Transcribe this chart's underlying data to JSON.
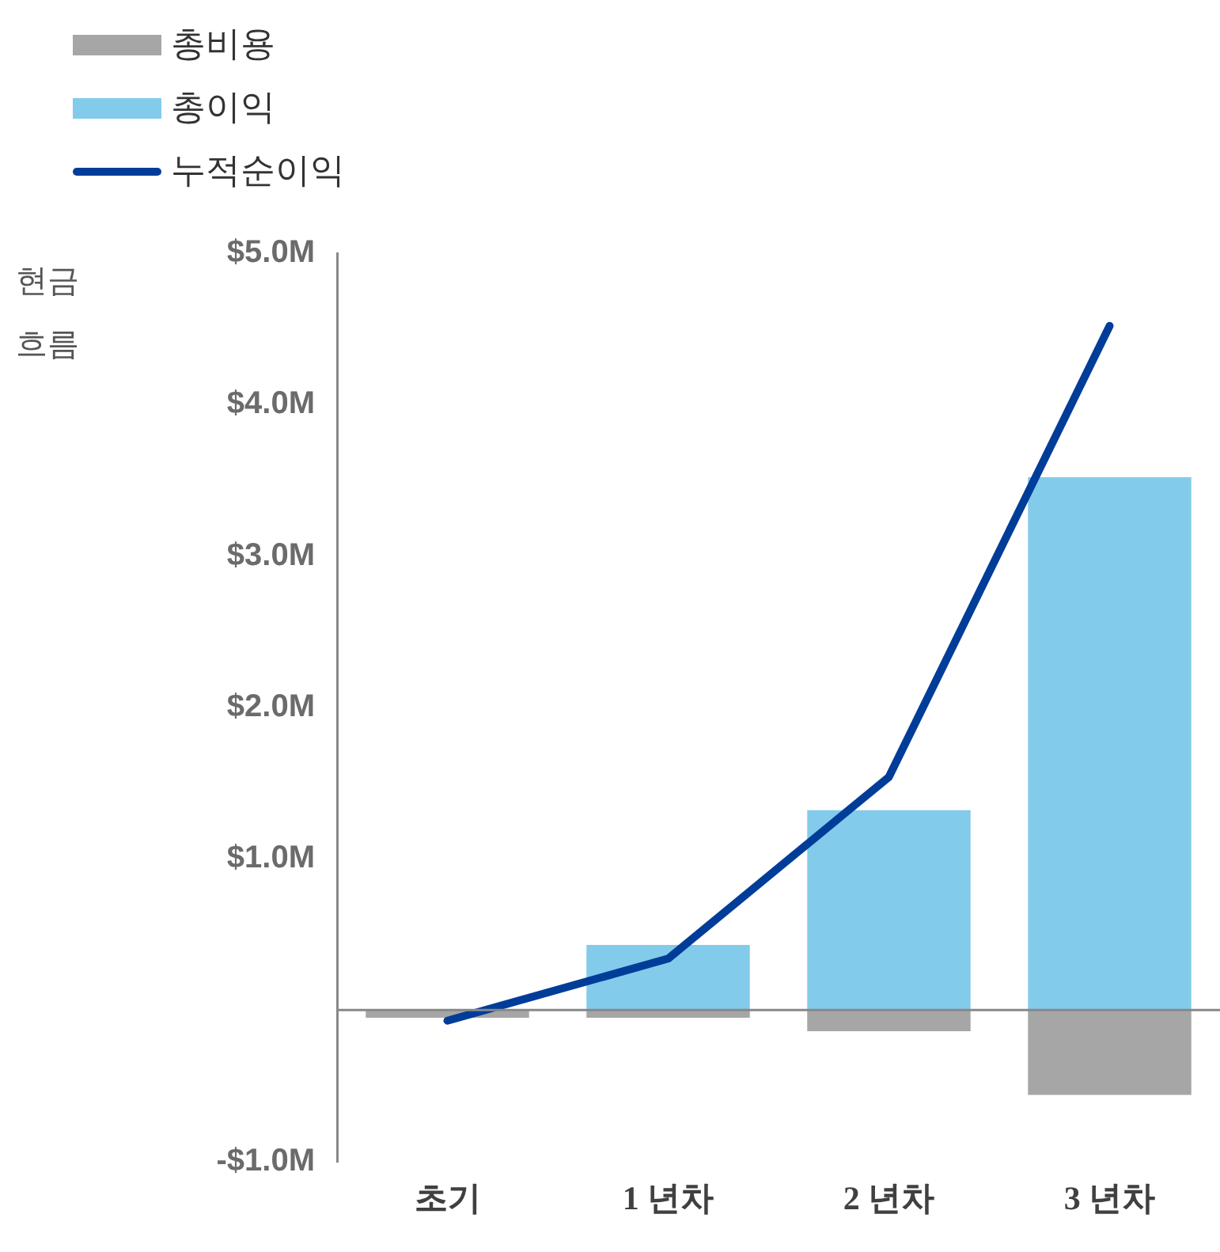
{
  "chart_data": {
    "type": "bar",
    "ylabel": "현금 흐름",
    "categories": [
      "초기",
      "1 년차",
      "2 년차",
      "3 년차"
    ],
    "series": [
      {
        "name": "총비용",
        "color": "#a6a6a6",
        "values": [
          -0.05,
          -0.05,
          -0.14,
          -0.56
        ]
      },
      {
        "name": "총이익",
        "color": "#83cbeb",
        "values": [
          null,
          0.43,
          1.32,
          3.52
        ]
      },
      {
        "name": "누적순이익",
        "type": "line",
        "color": "#003d99",
        "values": [
          -0.07,
          0.34,
          1.54,
          4.52
        ]
      }
    ],
    "stacked": true,
    "ylim": [
      -1,
      5
    ],
    "yticks": [
      {
        "value": -1,
        "label": "-$1.0M"
      },
      {
        "value": 0,
        "label": null
      },
      {
        "value": 1,
        "label": "$1.0M"
      },
      {
        "value": 2,
        "label": "$2.0M"
      },
      {
        "value": 3,
        "label": "$3.0M"
      },
      {
        "value": 4,
        "label": "$4.0M"
      },
      {
        "value": 5,
        "label": "$5.0M"
      }
    ],
    "ref_lines": [
      {
        "axis": "y",
        "value": 0,
        "color": "#888888"
      }
    ],
    "grid": false,
    "legend": "top left",
    "marker": "none"
  }
}
